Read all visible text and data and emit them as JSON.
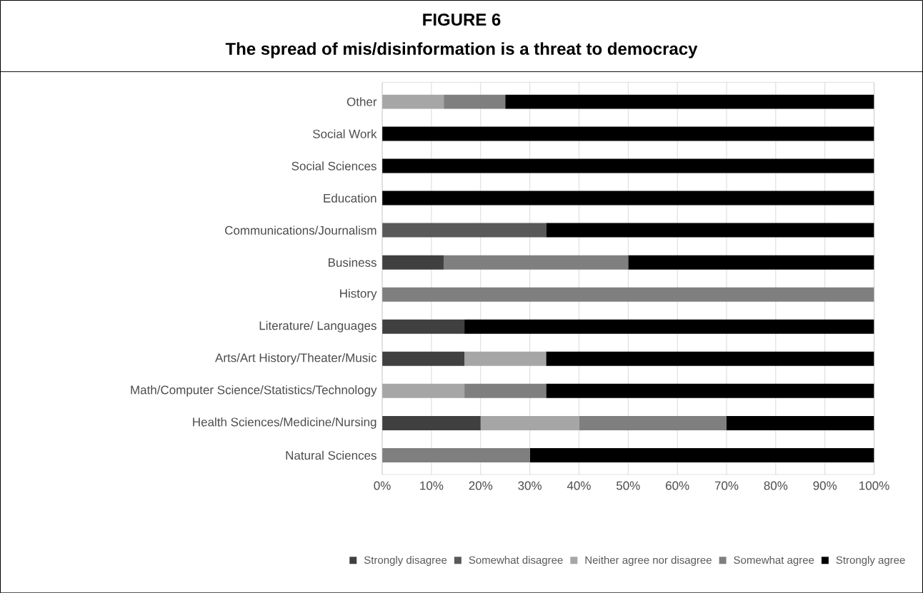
{
  "chart_data": {
    "type": "bar",
    "orientation": "horizontal",
    "stacked": true,
    "title": "FIGURE 6",
    "subtitle": "The spread of mis/disinformation is a threat to democracy",
    "categories": [
      "Other",
      "Social Work",
      "Social Sciences",
      "Education",
      "Communications/Journalism",
      "Business",
      "History",
      "Literature/ Languages",
      "Arts/Art History/Theater/Music",
      "Math/Computer Science/Statistics/Technology",
      "Health Sciences/Medicine/Nursing",
      "Natural Sciences"
    ],
    "series": [
      {
        "name": "Strongly disagree",
        "color": "#404040",
        "values": [
          null,
          null,
          null,
          null,
          null,
          12.5,
          null,
          16.7,
          16.7,
          null,
          20,
          null
        ]
      },
      {
        "name": "Somewhat disagree",
        "color": "#595959",
        "values": [
          null,
          null,
          null,
          null,
          33.3,
          null,
          null,
          null,
          null,
          null,
          null,
          null
        ]
      },
      {
        "name": "Neither agree nor disagree",
        "color": "#a6a6a6",
        "values": [
          12.5,
          null,
          null,
          null,
          null,
          null,
          null,
          null,
          16.6,
          16.7,
          20,
          null
        ]
      },
      {
        "name": "Somewhat agree",
        "color": "#7f7f7f",
        "values": [
          12.5,
          null,
          null,
          null,
          null,
          37.5,
          100,
          null,
          null,
          16.6,
          30,
          30
        ]
      },
      {
        "name": "Strongly agree",
        "color": "#000000",
        "values": [
          75,
          100,
          100,
          100,
          66.7,
          50,
          null,
          83.3,
          66.7,
          66.7,
          30,
          70
        ]
      }
    ],
    "xlim": [
      0,
      100
    ],
    "xticks": [
      {
        "value": 0,
        "label": "0%"
      },
      {
        "value": 10,
        "label": "10%"
      },
      {
        "value": 20,
        "label": "20%"
      },
      {
        "value": 30,
        "label": "30%"
      },
      {
        "value": 40,
        "label": "40%"
      },
      {
        "value": 50,
        "label": "50%"
      },
      {
        "value": 60,
        "label": "60%"
      },
      {
        "value": 70,
        "label": "70%"
      },
      {
        "value": 80,
        "label": "80%"
      },
      {
        "value": 90,
        "label": "90%"
      },
      {
        "value": 100,
        "label": "100%"
      }
    ],
    "grid": "x",
    "legend": "bottom"
  }
}
